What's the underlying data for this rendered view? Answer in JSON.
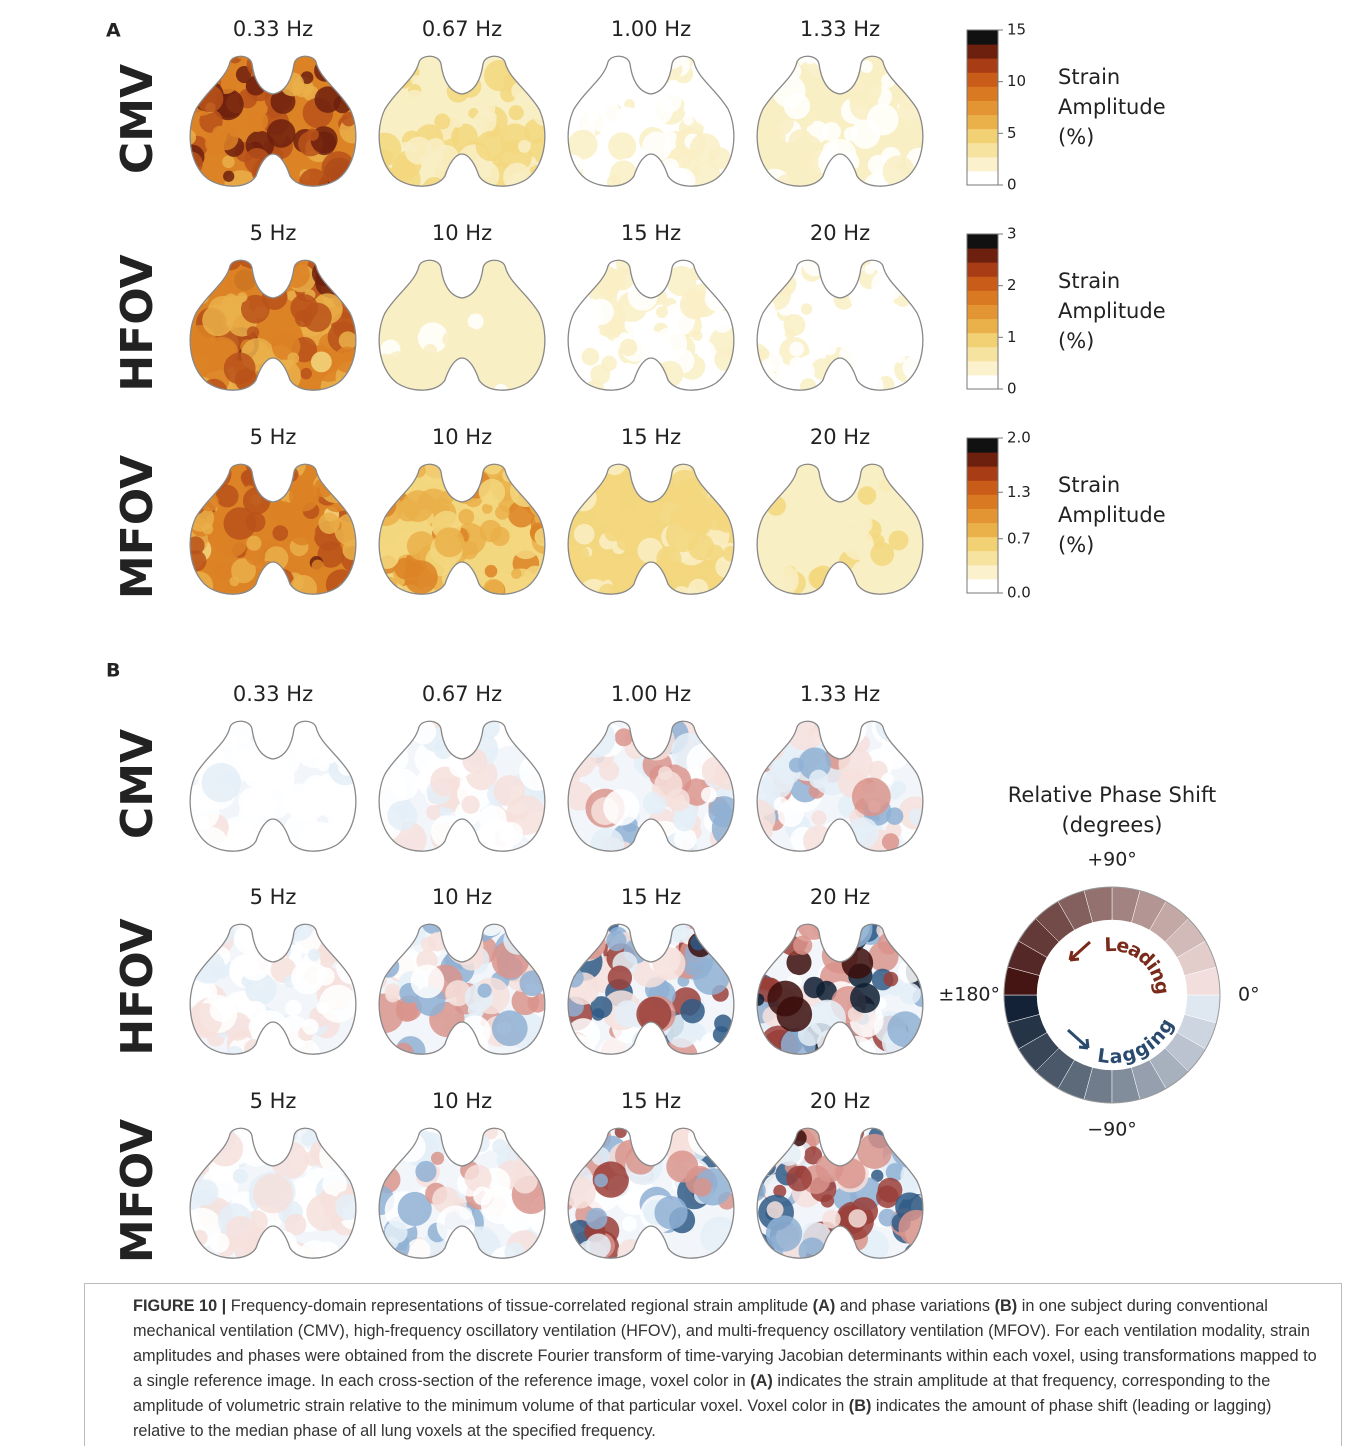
{
  "panel_a": {
    "label": "A",
    "rows": [
      {
        "label": "CMV",
        "frequencies": [
          "0.33 Hz",
          "0.67 Hz",
          "1.00 Hz",
          "1.33 Hz"
        ]
      },
      {
        "label": "HFOV",
        "frequencies": [
          "5 Hz",
          "10 Hz",
          "15 Hz",
          "20 Hz"
        ]
      },
      {
        "label": "MFOV",
        "frequencies": [
          "5 Hz",
          "10 Hz",
          "15 Hz",
          "20 Hz"
        ]
      }
    ],
    "colorbars": [
      {
        "range": [
          0,
          15
        ],
        "ticks": [
          0,
          5,
          10,
          15
        ],
        "title": [
          "Strain",
          "Amplitude",
          "(%)"
        ]
      },
      {
        "range": [
          0,
          3
        ],
        "ticks": [
          0,
          1,
          2,
          3
        ],
        "title": [
          "Strain",
          "Amplitude",
          "(%)"
        ]
      },
      {
        "range": [
          0,
          2
        ],
        "ticks": [
          {
            "value": 0,
            "label": "0.0"
          },
          0.7,
          1.3,
          {
            "value": 2,
            "label": "2.0"
          }
        ],
        "title": [
          "Strain",
          "Amplitude",
          "(%)"
        ]
      }
    ]
  },
  "panel_b": {
    "label": "B",
    "rows": [
      {
        "label": "CMV",
        "frequencies": [
          "0.33 Hz",
          "0.67 Hz",
          "1.00 Hz",
          "1.33 Hz"
        ]
      },
      {
        "label": "HFOV",
        "frequencies": [
          "5 Hz",
          "10 Hz",
          "15 Hz",
          "20 Hz"
        ]
      },
      {
        "label": "MFOV",
        "frequencies": [
          "5 Hz",
          "10 Hz",
          "15 Hz",
          "20 Hz"
        ]
      }
    ],
    "legend": {
      "title": [
        "Relative Phase Shift",
        "(degrees)"
      ],
      "top": "+90°",
      "right": "0°",
      "bottom": "−90°",
      "left": "±180°",
      "leading": "Leading",
      "lagging": "Lagging"
    }
  },
  "caption": [
    {
      "text": "FIGURE 10 |",
      "bold": true
    },
    {
      "text": " Frequency-domain representations of tissue-correlated regional strain amplitude ",
      "bold": false
    },
    {
      "text": "(A)",
      "bold": true
    },
    {
      "text": " and phase variations ",
      "bold": false
    },
    {
      "text": "(B)",
      "bold": true
    },
    {
      "text": " in one subject during conventional mechanical ventilation (CMV), high-frequency oscillatory ventilation (HFOV), and multi-frequency oscillatory ventilation (MFOV). For each ventilation modality, strain amplitudes and phases were obtained from the discrete Fourier transform of time-varying Jacobian determinants within each voxel, using transformations mapped to a single reference image. In each cross-section of the reference image, voxel color in ",
      "bold": false
    },
    {
      "text": "(A)",
      "bold": true
    },
    {
      "text": " indicates the strain amplitude at that frequency, corresponding to the amplitude of volumetric strain relative to the minimum volume of that particular voxel. Voxel color in ",
      "bold": false
    },
    {
      "text": "(B)",
      "bold": true
    },
    {
      "text": " indicates the amount of phase shift (leading or lagging) relative to the median phase of all lung voxels at the specified frequency.",
      "bold": false
    }
  ]
}
